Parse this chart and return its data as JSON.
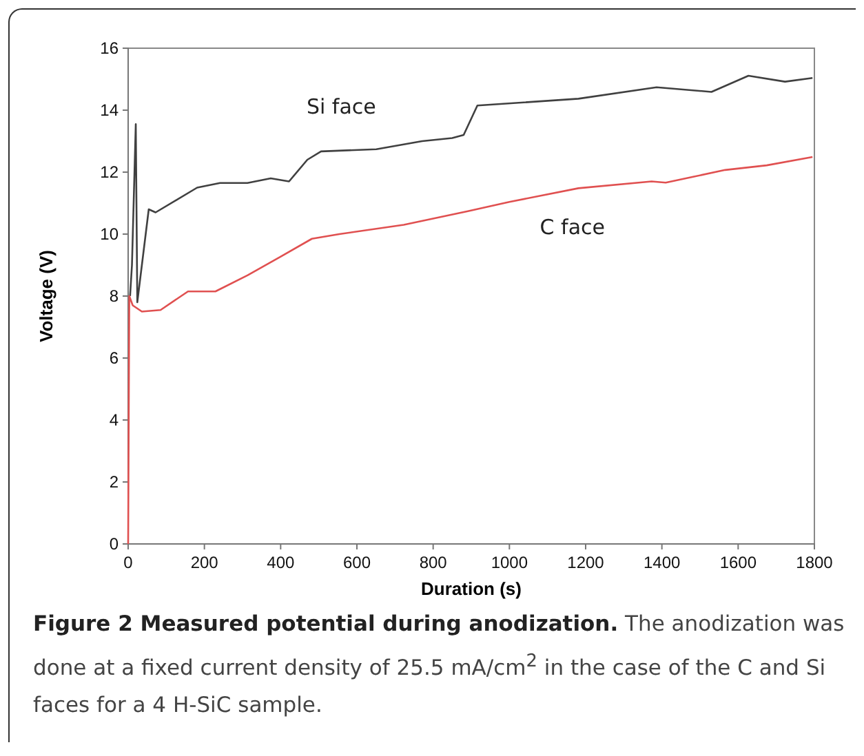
{
  "chart_data": {
    "type": "line",
    "title": "Figure 2 Measured potential during anodization.",
    "annotations": [
      "The anodization was done at a fixed current density of 25.5 mA/cm$^{2}$ in the case of the C and Si faces for a 4 H-SiC sample."
    ],
    "xlabel": "Duration (s)",
    "ylabel": "Voltage (V)",
    "xlim": [
      0,
      1800
    ],
    "ylim": [
      0,
      16
    ],
    "xticks": [
      0,
      200,
      400,
      600,
      800,
      1000,
      1200,
      1400,
      1600,
      1800
    ],
    "yticks": [
      0,
      2,
      4,
      6,
      8,
      10,
      12,
      14,
      16
    ],
    "grid": false,
    "series": [
      {
        "name": "Si face",
        "color": "#404040",
        "x": [
          5,
          10,
          20,
          24,
          54,
          72,
          181,
          241,
          313,
          374,
          422,
          470,
          506,
          651,
          771,
          850,
          880,
          916,
          1181,
          1386,
          1530,
          1627,
          1723,
          1795
        ],
        "values": [
          8.0,
          9.0,
          13.55,
          7.8,
          10.8,
          10.7,
          11.5,
          11.65,
          11.65,
          11.8,
          11.7,
          12.4,
          12.67,
          12.74,
          13.0,
          13.1,
          13.2,
          14.15,
          14.37,
          14.74,
          14.59,
          15.11,
          14.92,
          15.04
        ]
      },
      {
        "name": "C face",
        "color": "#e05050",
        "x": [
          0,
          3,
          12,
          36,
          85,
          157,
          229,
          313,
          398,
          482,
          554,
          723,
          891,
          1000,
          1181,
          1373,
          1410,
          1566,
          1675,
          1795
        ],
        "values": [
          0,
          8.0,
          7.7,
          7.5,
          7.55,
          8.15,
          8.15,
          8.67,
          9.26,
          9.85,
          10.0,
          10.3,
          10.74,
          11.04,
          11.48,
          11.7,
          11.66,
          12.07,
          12.22,
          12.49
        ]
      }
    ]
  }
}
